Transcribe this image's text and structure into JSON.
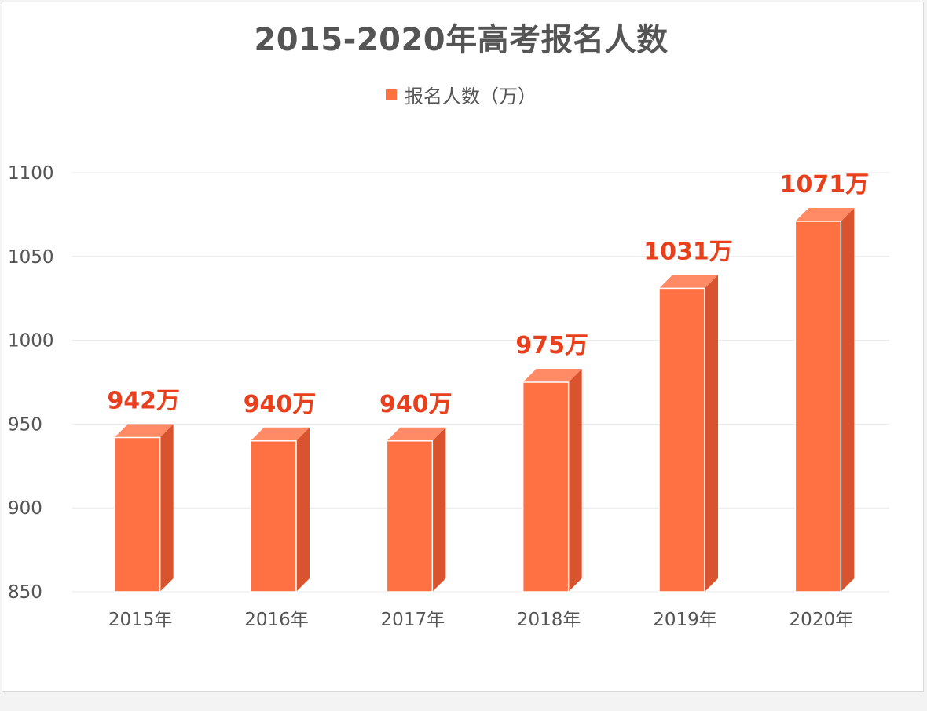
{
  "chart_data": {
    "type": "bar",
    "title": "2015-2020年高考报名人数",
    "series": [
      {
        "name": "报名人数（万）",
        "values": [
          942,
          940,
          940,
          975,
          1031,
          1071
        ],
        "data_labels": [
          "942万",
          "940万",
          "940万",
          "975万",
          "1031万",
          "1071万"
        ]
      }
    ],
    "categories": [
      "2015年",
      "2016年",
      "2017年",
      "2018年",
      "2019年",
      "2020年"
    ],
    "ylim": [
      850,
      1100
    ],
    "yticks": [
      850,
      900,
      950,
      1000,
      1050,
      1100
    ],
    "ytick_labels": [
      "850",
      "900",
      "950",
      "1000",
      "1050",
      "1100"
    ],
    "grid": true,
    "legend_position": "top-center",
    "style": "3d-column",
    "colors": {
      "bar_front": "#ff7043",
      "bar_top": "#ff8a65",
      "bar_side": "#d9542e",
      "data_label": "#e8401c",
      "grid": "#e8e8e8"
    }
  }
}
